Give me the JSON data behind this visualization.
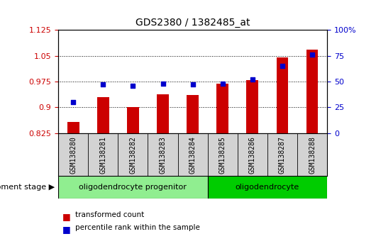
{
  "title": "GDS2380 / 1382485_at",
  "samples": [
    "GSM138280",
    "GSM138281",
    "GSM138282",
    "GSM138283",
    "GSM138284",
    "GSM138285",
    "GSM138286",
    "GSM138287",
    "GSM138288"
  ],
  "transformed_counts": [
    0.858,
    0.93,
    0.9,
    0.938,
    0.935,
    0.968,
    0.98,
    1.045,
    1.068
  ],
  "percentile_ranks": [
    30,
    47,
    46,
    48,
    47,
    48,
    52,
    65,
    76
  ],
  "ylim_left": [
    0.825,
    1.125
  ],
  "ylim_right": [
    0,
    100
  ],
  "yticks_left": [
    0.825,
    0.9,
    0.975,
    1.05,
    1.125
  ],
  "ytick_labels_left": [
    "0.825",
    "0.9",
    "0.975",
    "1.05",
    "1.125"
  ],
  "yticks_right": [
    0,
    25,
    50,
    75,
    100
  ],
  "ytick_labels_right": [
    "0",
    "25",
    "50",
    "75",
    "100%"
  ],
  "bar_color": "#cc0000",
  "dot_color": "#0000cc",
  "bar_width": 0.4,
  "groups": [
    {
      "label": "oligodendrocyte progenitor",
      "start": 0,
      "end": 4,
      "color": "#90ee90"
    },
    {
      "label": "oligodendrocyte",
      "start": 5,
      "end": 8,
      "color": "#00cc00"
    }
  ],
  "xlabel_left": "development stage",
  "legend_items": [
    {
      "color": "#cc0000",
      "label": "transformed count"
    },
    {
      "color": "#0000cc",
      "label": "percentile rank within the sample"
    }
  ],
  "background_color": "#ffffff",
  "tick_bg_color": "#d3d3d3",
  "grid_color": "#000000",
  "grid_linestyle": "dotted",
  "grid_linewidth": 0.7
}
